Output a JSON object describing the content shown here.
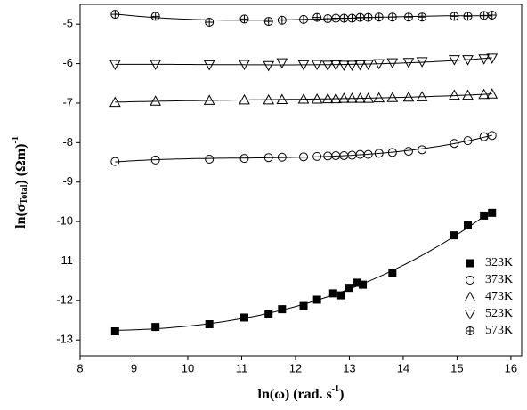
{
  "chart_data": {
    "type": "scatter",
    "xlabel": {
      "text": "ln(ω) (rad. s",
      "sup": "-1",
      "end": ")"
    },
    "ylabel": {
      "text": "ln(σ",
      "sub": "Total",
      "mid": ") (Ωm)",
      "sup": "-1"
    },
    "xlim": [
      8,
      16.2
    ],
    "ylim": [
      -13.4,
      -4.5
    ],
    "xticks": [
      8,
      9,
      10,
      11,
      12,
      13,
      14,
      15,
      16
    ],
    "yticks": [
      -13,
      -12,
      -11,
      -10,
      -9,
      -8,
      -7,
      -6,
      -5
    ],
    "legend": "lower right",
    "fit_lines": true,
    "series": [
      {
        "name": "323K",
        "marker": "square",
        "color": "#000000",
        "x": [
          8.65,
          9.4,
          10.4,
          11.05,
          11.5,
          11.75,
          12.15,
          12.4,
          12.7,
          12.85,
          13.0,
          13.15,
          13.25,
          13.8,
          14.95,
          15.2,
          15.5,
          15.65
        ],
        "values": [
          -12.78,
          -12.67,
          -12.6,
          -12.43,
          -12.35,
          -12.22,
          -12.14,
          -11.98,
          -11.82,
          -11.87,
          -11.68,
          -11.55,
          -11.6,
          -11.3,
          -10.35,
          -10.1,
          -9.85,
          -9.78
        ]
      },
      {
        "name": "373K",
        "marker": "circle",
        "color": "#000000",
        "x": [
          8.65,
          9.4,
          10.4,
          11.05,
          11.5,
          11.75,
          12.15,
          12.4,
          12.6,
          12.75,
          12.9,
          13.05,
          13.2,
          13.35,
          13.55,
          13.8,
          14.1,
          14.35,
          14.95,
          15.2,
          15.5,
          15.65
        ],
        "values": [
          -8.48,
          -8.44,
          -8.42,
          -8.4,
          -8.38,
          -8.37,
          -8.36,
          -8.35,
          -8.34,
          -8.33,
          -8.33,
          -8.32,
          -8.3,
          -8.3,
          -8.27,
          -8.25,
          -8.22,
          -8.18,
          -8.02,
          -7.95,
          -7.85,
          -7.82
        ]
      },
      {
        "name": "473K",
        "marker": "triangle-up",
        "color": "#000000",
        "x": [
          8.65,
          9.4,
          10.4,
          11.05,
          11.5,
          11.75,
          12.15,
          12.4,
          12.6,
          12.75,
          12.9,
          13.05,
          13.2,
          13.35,
          13.55,
          13.8,
          14.1,
          14.35,
          14.95,
          15.2,
          15.5,
          15.65
        ],
        "values": [
          -6.98,
          -6.95,
          -6.93,
          -6.92,
          -6.92,
          -6.91,
          -6.9,
          -6.9,
          -6.89,
          -6.89,
          -6.88,
          -6.88,
          -6.88,
          -6.88,
          -6.87,
          -6.86,
          -6.85,
          -6.84,
          -6.8,
          -6.8,
          -6.78,
          -6.77
        ]
      },
      {
        "name": "523K",
        "marker": "triangle-down",
        "color": "#000000",
        "x": [
          8.65,
          9.4,
          10.4,
          11.05,
          11.5,
          11.75,
          12.15,
          12.4,
          12.6,
          12.75,
          12.9,
          13.05,
          13.2,
          13.35,
          13.55,
          13.8,
          14.1,
          14.35,
          14.95,
          15.2,
          15.5,
          15.65
        ],
        "values": [
          -6.02,
          -6.02,
          -6.03,
          -6.02,
          -6.05,
          -5.98,
          -6.03,
          -6.02,
          -6.04,
          -6.03,
          -6.04,
          -6.04,
          -6.03,
          -6.02,
          -6.0,
          -5.98,
          -5.97,
          -5.95,
          -5.9,
          -5.9,
          -5.88,
          -5.86
        ]
      },
      {
        "name": "573K",
        "marker": "circle-plus",
        "color": "#000000",
        "x": [
          8.65,
          9.4,
          10.4,
          11.05,
          11.5,
          11.75,
          12.15,
          12.4,
          12.6,
          12.75,
          12.9,
          13.05,
          13.2,
          13.35,
          13.55,
          13.8,
          14.1,
          14.35,
          14.95,
          15.2,
          15.5,
          15.65
        ],
        "values": [
          -4.75,
          -4.8,
          -4.95,
          -4.87,
          -4.93,
          -4.9,
          -4.88,
          -4.83,
          -4.86,
          -4.85,
          -4.85,
          -4.85,
          -4.83,
          -4.83,
          -4.82,
          -4.82,
          -4.82,
          -4.82,
          -4.8,
          -4.8,
          -4.78,
          -4.77
        ]
      }
    ]
  }
}
